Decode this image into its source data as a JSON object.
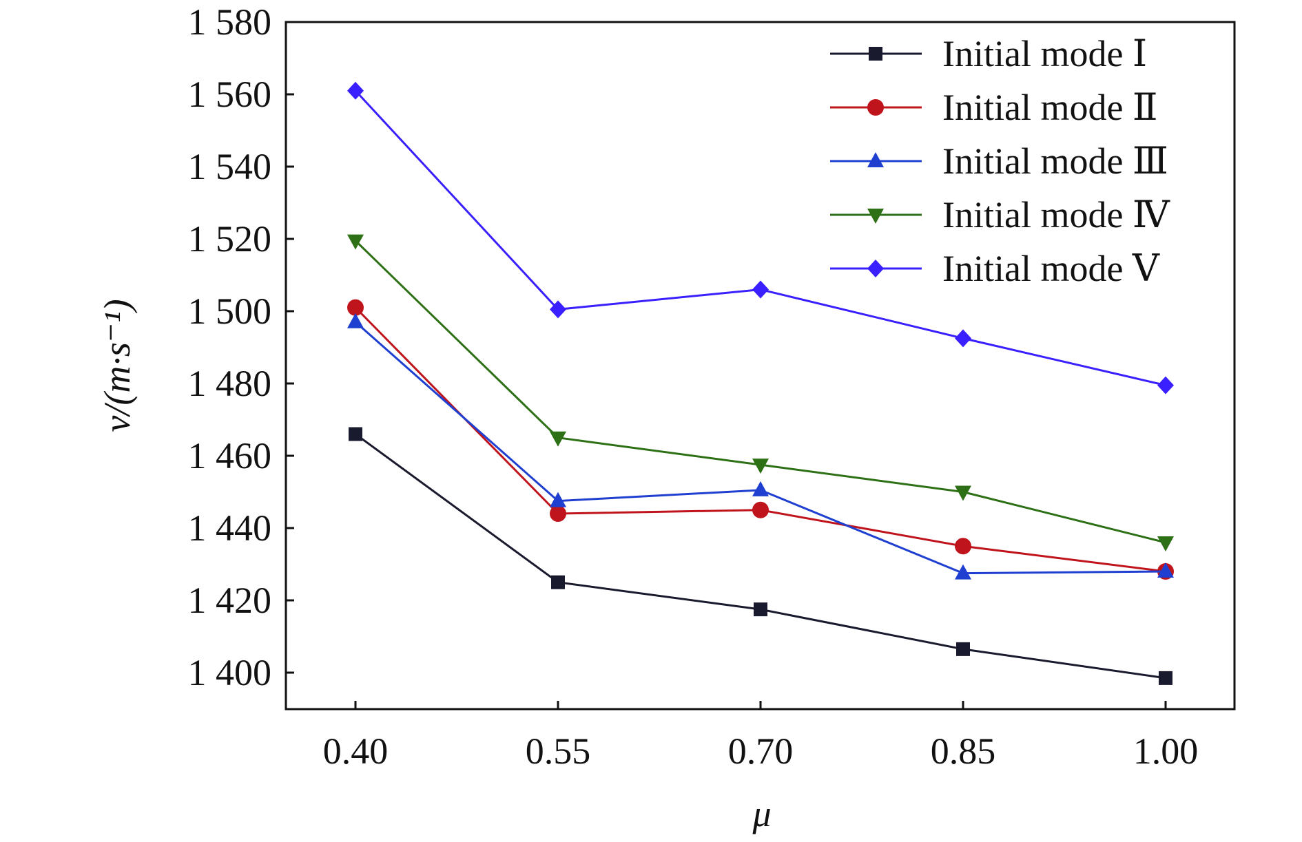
{
  "chart_data": {
    "type": "line",
    "title": "",
    "xlabel": "μ",
    "ylabel": "v/(m·s⁻¹)",
    "x": [
      0.4,
      0.55,
      0.7,
      0.85,
      1.0
    ],
    "x_tick_labels": [
      "0.40",
      "0.55",
      "0.70",
      "0.85",
      "1.00"
    ],
    "y_ticks": [
      1400,
      1420,
      1440,
      1460,
      1480,
      1500,
      1520,
      1540,
      1560,
      1580
    ],
    "y_tick_labels": [
      "1 400",
      "1 420",
      "1 440",
      "1 460",
      "1 480",
      "1 500",
      "1 520",
      "1 540",
      "1 560",
      "1 580"
    ],
    "ylim": [
      1390,
      1580
    ],
    "grid": false,
    "legend_position": "top-right",
    "series": [
      {
        "name": "Initial mode Ⅰ",
        "color": "#1a1a2e",
        "marker": "square",
        "values": [
          1466,
          1425,
          1417.5,
          1406.5,
          1398.5
        ]
      },
      {
        "name": "Initial mode Ⅱ",
        "color": "#c0141c",
        "marker": "circle",
        "values": [
          1501,
          1444,
          1445,
          1435,
          1428
        ]
      },
      {
        "name": "Initial mode Ⅲ",
        "color": "#1f3fd0",
        "marker": "triangle-up",
        "values": [
          1497,
          1447.5,
          1450.5,
          1427.5,
          1428
        ]
      },
      {
        "name": "Initial mode Ⅳ",
        "color": "#2e7016",
        "marker": "triangle-down",
        "values": [
          1519.5,
          1465,
          1457.5,
          1450,
          1436
        ]
      },
      {
        "name": "Initial mode Ⅴ",
        "color": "#3a1fff",
        "marker": "diamond",
        "values": [
          1561,
          1500.5,
          1506,
          1492.5,
          1479.5
        ]
      }
    ]
  }
}
